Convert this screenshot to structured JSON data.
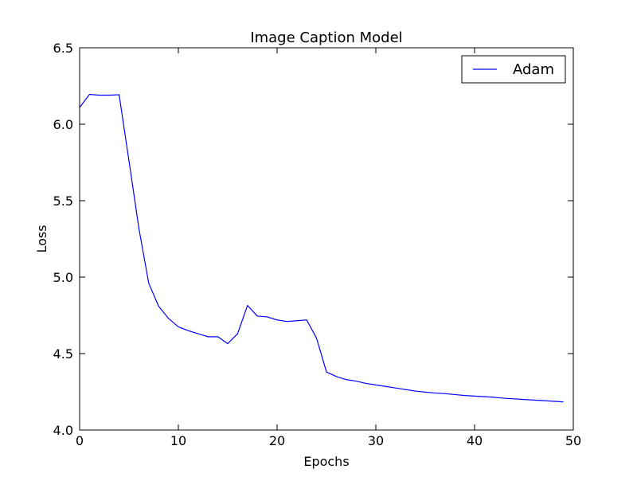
{
  "chart_data": {
    "type": "line",
    "title": "Image Caption Model",
    "xlabel": "Epochs",
    "ylabel": "Loss",
    "xlim": [
      0,
      50
    ],
    "ylim": [
      4.0,
      6.5
    ],
    "x_ticks": [
      0,
      10,
      20,
      30,
      40,
      50
    ],
    "y_ticks": [
      4.0,
      4.5,
      5.0,
      5.5,
      6.0,
      6.5
    ],
    "x_tick_labels": [
      "0",
      "10",
      "20",
      "30",
      "40",
      "50"
    ],
    "y_tick_labels": [
      "4.0",
      "4.5",
      "5.0",
      "5.5",
      "6.0",
      "6.5"
    ],
    "grid": false,
    "legend": {
      "position": "top-right",
      "entries": [
        "Adam"
      ]
    },
    "series": [
      {
        "name": "Adam",
        "color": "#0000ff",
        "x": [
          0,
          1,
          2,
          3,
          4,
          5,
          6,
          7,
          8,
          9,
          10,
          11,
          12,
          13,
          14,
          15,
          16,
          17,
          18,
          19,
          20,
          21,
          22,
          23,
          24,
          25,
          26,
          27,
          28,
          29,
          30,
          31,
          32,
          33,
          34,
          35,
          36,
          37,
          38,
          39,
          40,
          41,
          42,
          43,
          44,
          45,
          46,
          47,
          48,
          49
        ],
        "y": [
          6.11,
          6.195,
          6.19,
          6.19,
          6.193,
          5.76,
          5.32,
          4.96,
          4.81,
          4.73,
          4.675,
          4.65,
          4.63,
          4.61,
          4.61,
          4.565,
          4.63,
          4.815,
          4.745,
          4.74,
          4.72,
          4.71,
          4.715,
          4.72,
          4.6,
          4.38,
          4.35,
          4.33,
          4.32,
          4.305,
          4.295,
          4.285,
          4.275,
          4.265,
          4.255,
          4.248,
          4.242,
          4.238,
          4.232,
          4.226,
          4.222,
          4.218,
          4.214,
          4.208,
          4.204,
          4.2,
          4.196,
          4.192,
          4.188,
          4.184
        ]
      }
    ]
  }
}
